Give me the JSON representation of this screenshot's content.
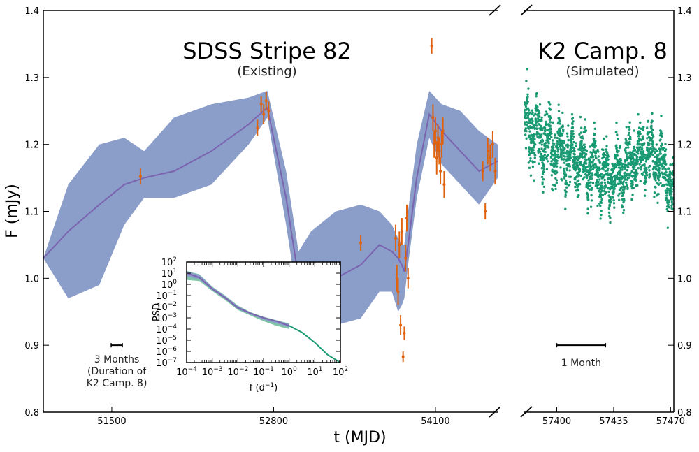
{
  "chart_data": {
    "type": "line",
    "ylabel": "F (mJy)",
    "xlabel": "t (MJD)",
    "ylim": [
      0.8,
      1.4
    ],
    "yticks": [
      "0.8",
      "0.9",
      "1.0",
      "1.1",
      "1.2",
      "1.3",
      "1.4"
    ],
    "colors": {
      "band": "#8b9dc9",
      "model": "#7a64b0",
      "obs": "#e0620f",
      "sim": "#1a9a72",
      "inset_green": "#1a9a72"
    },
    "panels": [
      {
        "title": "SDSS Stripe 82",
        "subtitle": "(Existing)",
        "xlim": [
          50950,
          54600
        ],
        "xticks": [
          "51500",
          "52800",
          "54100"
        ],
        "model": {
          "x": [
            50950,
            51150,
            51400,
            51600,
            51760,
            52000,
            52300,
            52600,
            52750,
            52900,
            53000,
            53100,
            53300,
            53500,
            53650,
            53750,
            53800,
            53830,
            53850,
            53880,
            53950,
            54050,
            54150,
            54300,
            54450,
            54600
          ],
          "y": [
            1.03,
            1.07,
            1.11,
            1.14,
            1.15,
            1.16,
            1.19,
            1.23,
            1.255,
            1.12,
            1.0,
            0.99,
            1.0,
            1.02,
            1.05,
            1.04,
            1.03,
            1.02,
            1.01,
            1.05,
            1.15,
            1.245,
            1.22,
            1.19,
            1.16,
            1.175
          ],
          "upper": [
            1.03,
            1.14,
            1.2,
            1.21,
            1.19,
            1.24,
            1.26,
            1.27,
            1.28,
            1.16,
            1.04,
            1.07,
            1.1,
            1.11,
            1.1,
            1.08,
            1.06,
            1.05,
            1.05,
            1.1,
            1.2,
            1.28,
            1.26,
            1.25,
            1.22,
            1.2
          ],
          "lower": [
            1.03,
            0.97,
            0.99,
            1.08,
            1.12,
            1.12,
            1.14,
            1.2,
            1.24,
            1.08,
            0.96,
            0.94,
            0.93,
            0.94,
            0.98,
            0.98,
            0.95,
            0.96,
            0.97,
            1.02,
            1.12,
            1.21,
            1.17,
            1.14,
            1.11,
            1.15
          ]
        },
        "observations": [
          {
            "x": 51730,
            "y": 1.152,
            "err": 0.012
          },
          {
            "x": 52670,
            "y": 1.225,
            "err": 0.012
          },
          {
            "x": 52700,
            "y": 1.26,
            "err": 0.012
          },
          {
            "x": 52720,
            "y": 1.245,
            "err": 0.015
          },
          {
            "x": 52740,
            "y": 1.265,
            "err": 0.014
          },
          {
            "x": 52760,
            "y": 1.25,
            "err": 0.014
          },
          {
            "x": 53500,
            "y": 1.053,
            "err": 0.012
          },
          {
            "x": 53780,
            "y": 1.06,
            "err": 0.02
          },
          {
            "x": 53790,
            "y": 1.0,
            "err": 0.02
          },
          {
            "x": 53800,
            "y": 0.98,
            "err": 0.02
          },
          {
            "x": 53810,
            "y": 1.05,
            "err": 0.02
          },
          {
            "x": 53820,
            "y": 0.93,
            "err": 0.015
          },
          {
            "x": 53830,
            "y": 1.07,
            "err": 0.02
          },
          {
            "x": 53840,
            "y": 0.883,
            "err": 0.008
          },
          {
            "x": 53850,
            "y": 0.918,
            "err": 0.01
          },
          {
            "x": 53860,
            "y": 1.03,
            "err": 0.02
          },
          {
            "x": 53870,
            "y": 1.09,
            "err": 0.02
          },
          {
            "x": 53880,
            "y": 1.0,
            "err": 0.015
          },
          {
            "x": 54070,
            "y": 1.347,
            "err": 0.012
          },
          {
            "x": 54080,
            "y": 1.24,
            "err": 0.02
          },
          {
            "x": 54090,
            "y": 1.2,
            "err": 0.02
          },
          {
            "x": 54100,
            "y": 1.22,
            "err": 0.02
          },
          {
            "x": 54110,
            "y": 1.18,
            "err": 0.025
          },
          {
            "x": 54120,
            "y": 1.21,
            "err": 0.02
          },
          {
            "x": 54130,
            "y": 1.19,
            "err": 0.02
          },
          {
            "x": 54140,
            "y": 1.16,
            "err": 0.02
          },
          {
            "x": 54150,
            "y": 1.2,
            "err": 0.02
          },
          {
            "x": 54160,
            "y": 1.22,
            "err": 0.02
          },
          {
            "x": 54170,
            "y": 1.14,
            "err": 0.02
          },
          {
            "x": 54480,
            "y": 1.16,
            "err": 0.015
          },
          {
            "x": 54500,
            "y": 1.1,
            "err": 0.012
          },
          {
            "x": 54520,
            "y": 1.19,
            "err": 0.02
          },
          {
            "x": 54540,
            "y": 1.18,
            "err": 0.02
          },
          {
            "x": 54560,
            "y": 1.2,
            "err": 0.02
          },
          {
            "x": 54580,
            "y": 1.16,
            "err": 0.02
          }
        ],
        "scalebar": {
          "x_center": 51540,
          "y": 0.9,
          "length_days": 90,
          "label_lines": [
            "3 Months",
            "(Duration of",
            "K2 Camp. 8)"
          ]
        }
      },
      {
        "title": "K2 Camp. 8",
        "subtitle": "(Simulated)",
        "xlim": [
          57380,
          57472
        ],
        "xticks": [
          "57400",
          "57435",
          "57470"
        ],
        "simulated_trend": {
          "x": [
            57380,
            57390,
            57400,
            57410,
            57420,
            57430,
            57435,
            57445,
            57455,
            57465,
            57472
          ],
          "y": [
            1.23,
            1.21,
            1.19,
            1.18,
            1.17,
            1.15,
            1.15,
            1.17,
            1.19,
            1.17,
            1.13
          ]
        },
        "scalebar": {
          "x_start": 57400,
          "x_end": 57430,
          "y": 0.9,
          "label": "1 Month"
        }
      }
    ],
    "inset": {
      "type": "line",
      "xlabel": "f (d",
      "xlabel_sup": "−1",
      "xlabel_end": ")",
      "ylabel": "PSD",
      "x_log_range": [
        -4,
        2
      ],
      "y_log_range": [
        -7,
        2
      ],
      "xticks": [
        {
          "base": "10",
          "exp": "−4"
        },
        {
          "base": "10",
          "exp": "−3"
        },
        {
          "base": "10",
          "exp": "−2"
        },
        {
          "base": "10",
          "exp": "−1"
        },
        {
          "base": "10",
          "exp": "0"
        },
        {
          "base": "10",
          "exp": "1"
        },
        {
          "base": "10",
          "exp": "2"
        }
      ],
      "yticks": [
        {
          "base": "10",
          "exp": "2"
        },
        {
          "base": "10",
          "exp": "1"
        },
        {
          "base": "10",
          "exp": "0"
        },
        {
          "base": "10",
          "exp": "−1"
        },
        {
          "base": "10",
          "exp": "−2"
        },
        {
          "base": "10",
          "exp": "−3"
        },
        {
          "base": "10",
          "exp": "−4"
        },
        {
          "base": "10",
          "exp": "−5"
        },
        {
          "base": "10",
          "exp": "−6"
        },
        {
          "base": "10",
          "exp": "−7"
        }
      ],
      "sdss_psd": {
        "logf": [
          -4,
          -3.5,
          -3,
          -2.5,
          -2,
          -1.5,
          -1,
          -0.5,
          0
        ],
        "logpsd_mid": [
          1.0,
          0.6,
          -0.4,
          -1.2,
          -2.1,
          -2.6,
          -3.0,
          -3.3,
          -3.7
        ],
        "logpsd_upper": [
          1.2,
          0.9,
          -0.2,
          -1.0,
          -1.9,
          -2.5,
          -2.9,
          -3.2,
          -3.5
        ],
        "logpsd_lower": [
          0.4,
          0.3,
          -0.6,
          -1.4,
          -2.3,
          -2.8,
          -3.3,
          -3.7,
          -4.0
        ]
      },
      "k2_psd": {
        "logf": [
          0,
          0.5,
          1,
          1.5,
          2
        ],
        "logpsd": [
          -3.7,
          -4.3,
          -5.2,
          -6.3,
          -7.0
        ]
      }
    }
  }
}
